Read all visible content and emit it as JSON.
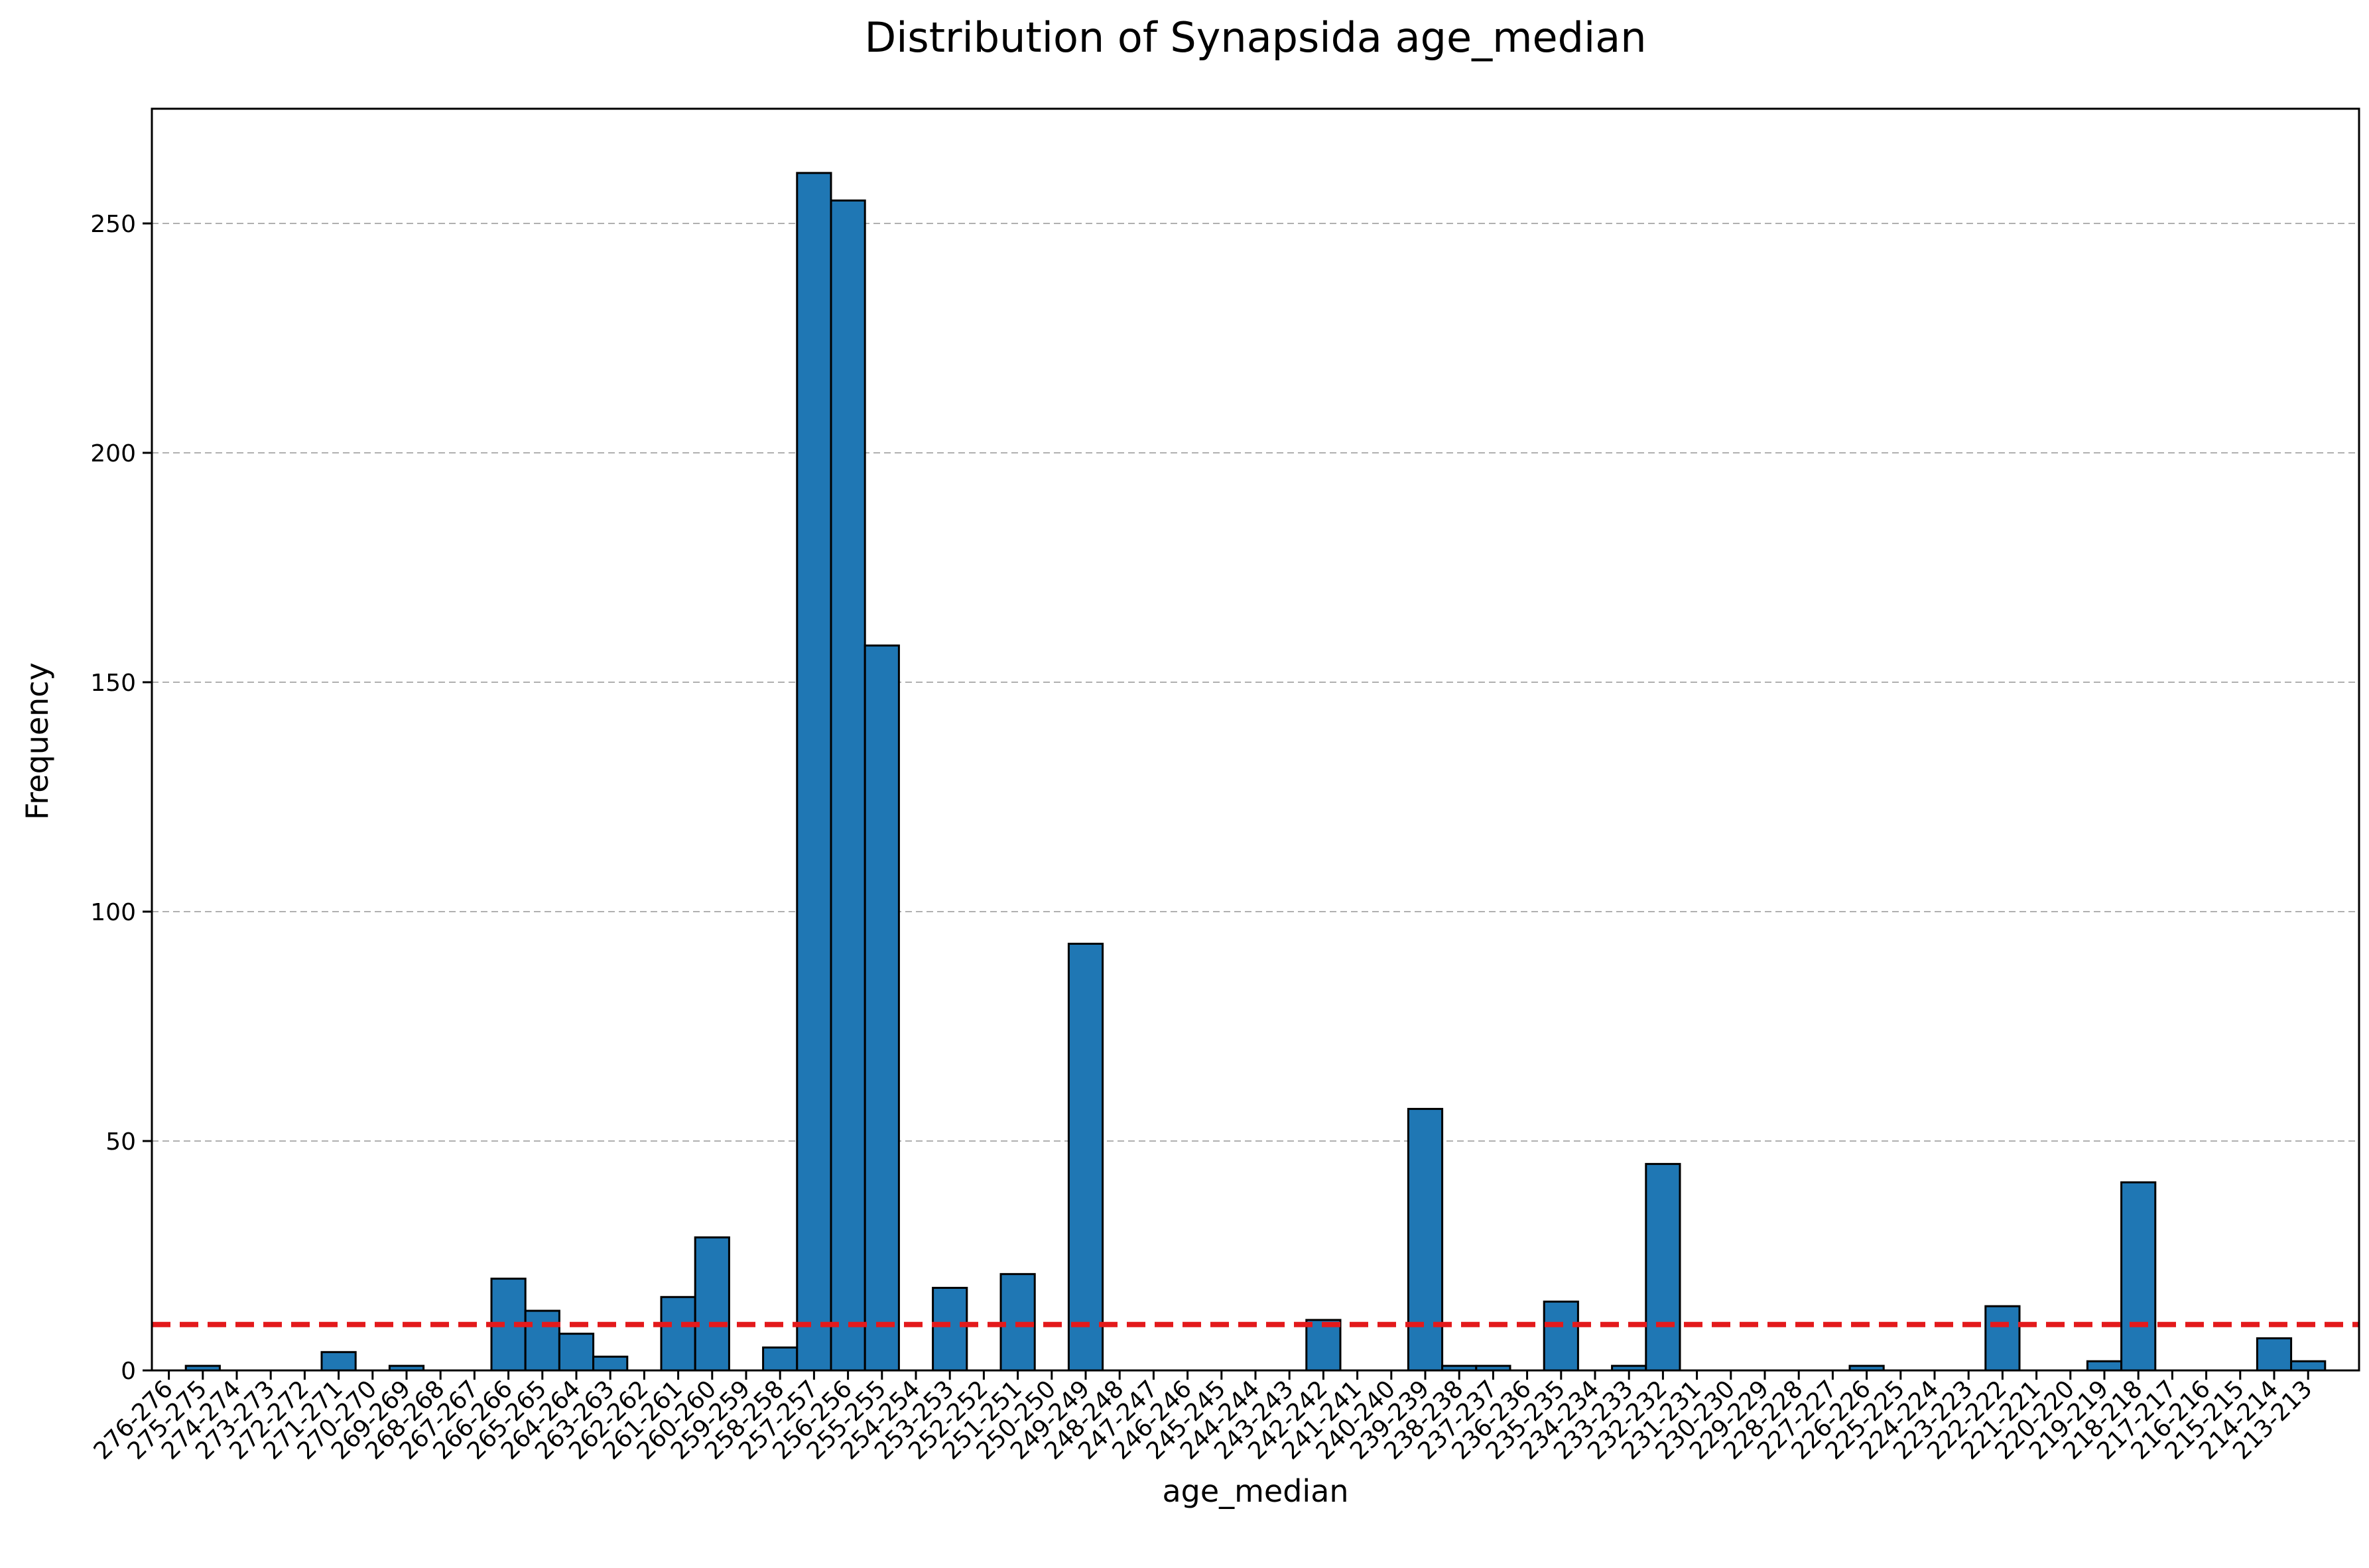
{
  "chart_data": {
    "type": "bar",
    "title": "Distribution of Synapsida age_median",
    "xlabel": "age_median",
    "ylabel": "Frequency",
    "ylim": [
      0,
      275
    ],
    "yticks": [
      0,
      50,
      100,
      150,
      200,
      250
    ],
    "grid": "y-dashed",
    "categories": [
      "276-276",
      "275-275",
      "274-274",
      "273-273",
      "272-272",
      "271-271",
      "270-270",
      "269-269",
      "268-268",
      "267-267",
      "266-266",
      "265-265",
      "264-264",
      "263-263",
      "262-262",
      "261-261",
      "260-260",
      "259-259",
      "258-258",
      "257-257",
      "256-256",
      "255-255",
      "254-254",
      "253-253",
      "252-252",
      "251-251",
      "250-250",
      "249-249",
      "248-248",
      "247-247",
      "246-246",
      "245-245",
      "244-244",
      "243-243",
      "242-242",
      "241-241",
      "240-240",
      "239-239",
      "238-238",
      "237-237",
      "236-236",
      "235-235",
      "234-234",
      "233-233",
      "232-232",
      "231-231",
      "230-230",
      "229-229",
      "228-228",
      "227-227",
      "226-226",
      "225-225",
      "224-224",
      "223-223",
      "222-222",
      "221-221",
      "220-220",
      "219-219",
      "218-218",
      "217-217",
      "216-216",
      "215-215",
      "214-214",
      "213-213"
    ],
    "tick_labels": [
      "276-276",
      "275-275",
      "274-274",
      "273-273",
      "272-272",
      "271-271",
      "270-270",
      "269-269",
      "268-268",
      "267-267",
      "266-266",
      "265-265",
      "264-264",
      "263-263",
      "262-262",
      "261-261",
      "260-260",
      "259-259",
      "258-258",
      "257-257",
      "256-256",
      "255-255",
      "254-254",
      "253-253",
      "252-252",
      "251-251",
      "250-250",
      "249-249",
      "248-248",
      "247-247",
      "246-246",
      "245-245",
      "244-244",
      "243-243",
      "242-242",
      "241-241",
      "240-240",
      "239-239",
      "238-238",
      "237-237",
      "236-236",
      "235-235",
      "234-234",
      "233-233",
      "232-232",
      "231-231",
      "230-230",
      "229-229",
      "228-228",
      "227-227",
      "226-226",
      "225-225",
      "224-224",
      "223-223",
      "222-222",
      "221-221",
      "220-220",
      "219-219",
      "218-218",
      "217-217",
      "216-216",
      "215-215",
      "214-214",
      "213-213"
    ],
    "values": [
      0,
      1,
      0,
      0,
      0,
      4,
      0,
      1,
      0,
      0,
      20,
      13,
      8,
      3,
      0,
      16,
      29,
      0,
      5,
      261,
      255,
      158,
      0,
      18,
      0,
      21,
      0,
      93,
      0,
      0,
      0,
      0,
      0,
      0,
      11,
      0,
      0,
      57,
      1,
      1,
      0,
      15,
      0,
      1,
      45,
      0,
      0,
      0,
      0,
      0,
      1,
      0,
      0,
      0,
      14,
      0,
      0,
      2,
      41,
      0,
      0,
      0,
      7,
      2
    ],
    "threshold_line": {
      "y": 10,
      "color": "#e31a1c",
      "style": "dashed"
    },
    "bar_color": "#1f77b4",
    "grid_color": "#b0b0b0"
  }
}
